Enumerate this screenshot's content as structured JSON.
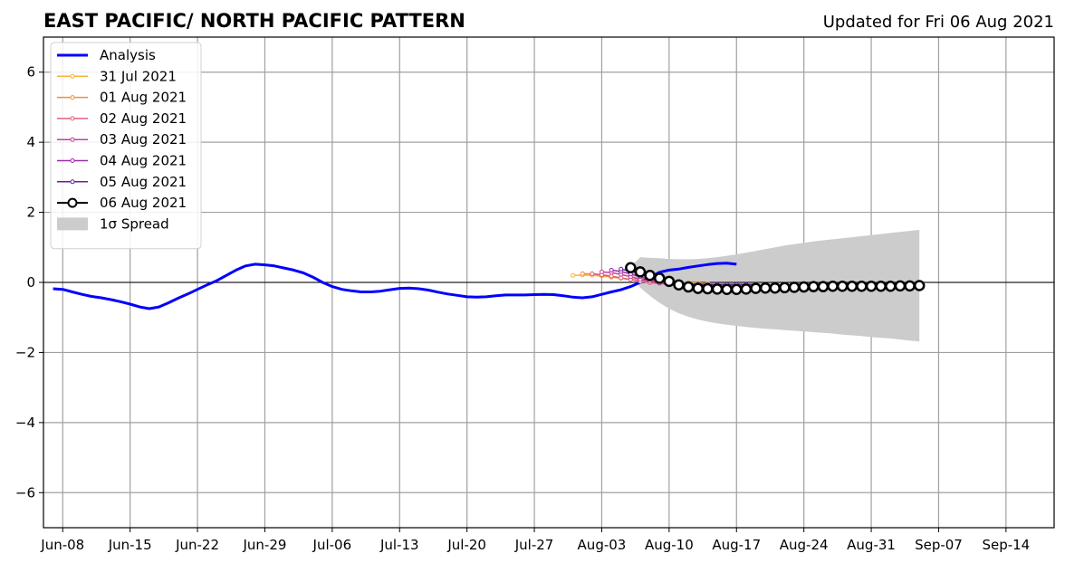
{
  "chart_data": {
    "type": "line",
    "title": "EAST PACIFIC/ NORTH PACIFIC PATTERN",
    "subtitle": "Updated for Fri 06 Aug 2021",
    "xlabel": "",
    "ylabel": "",
    "ylim": [
      -7,
      7
    ],
    "xlim": [
      "2021-06-06",
      "2021-09-19"
    ],
    "grid": true,
    "legend_position": "top-left",
    "x_ticks": [
      "Jun-08",
      "Jun-15",
      "Jun-22",
      "Jun-29",
      "Jul-06",
      "Jul-13",
      "Jul-20",
      "Jul-27",
      "Aug-03",
      "Aug-10",
      "Aug-17",
      "Aug-24",
      "Aug-31",
      "Sep-07",
      "Sep-14"
    ],
    "y_ticks": [
      "−6",
      "−4",
      "−2",
      "0",
      "2",
      "4",
      "6"
    ],
    "analysis": {
      "name": "Analysis",
      "color": "#0000ff",
      "start_date": "2021-06-07",
      "values": [
        -0.18,
        -0.2,
        -0.27,
        -0.34,
        -0.4,
        -0.44,
        -0.49,
        -0.55,
        -0.62,
        -0.7,
        -0.75,
        -0.7,
        -0.58,
        -0.45,
        -0.33,
        -0.2,
        -0.07,
        0.05,
        0.2,
        0.35,
        0.47,
        0.52,
        0.5,
        0.47,
        0.41,
        0.35,
        0.27,
        0.15,
        0.0,
        -0.12,
        -0.2,
        -0.24,
        -0.27,
        -0.27,
        -0.25,
        -0.21,
        -0.17,
        -0.16,
        -0.18,
        -0.22,
        -0.28,
        -0.33,
        -0.37,
        -0.41,
        -0.42,
        -0.41,
        -0.38,
        -0.36,
        -0.36,
        -0.36,
        -0.35,
        -0.34,
        -0.35,
        -0.38,
        -0.42,
        -0.44,
        -0.41,
        -0.34,
        -0.27,
        -0.21,
        -0.12,
        0.0,
        0.15,
        0.29,
        0.35,
        0.38,
        0.43,
        0.47,
        0.51,
        0.54,
        0.55,
        0.52
      ]
    },
    "forecasts": [
      {
        "name": "31 Jul 2021",
        "color": "#f5b43c",
        "start_date": "2021-07-31",
        "values": [
          0.2,
          0.21,
          0.2,
          0.18,
          0.15,
          0.12,
          0.09,
          0.07,
          0.05,
          0.03,
          0.02,
          0.0,
          -0.01,
          -0.02,
          -0.03
        ]
      },
      {
        "name": "01 Aug 2021",
        "color": "#f28e3c",
        "start_date": "2021-08-01",
        "values": [
          0.25,
          0.24,
          0.2,
          0.16,
          0.12,
          0.08,
          0.05,
          0.03,
          0.01,
          -0.01,
          -0.02,
          -0.04,
          -0.05,
          -0.06,
          -0.07
        ]
      },
      {
        "name": "02 Aug 2021",
        "color": "#e0607e",
        "start_date": "2021-08-02",
        "values": [
          0.25,
          0.22,
          0.18,
          0.13,
          0.08,
          0.03,
          -0.01,
          -0.03,
          -0.05,
          -0.06,
          -0.07,
          -0.07,
          -0.07,
          -0.07,
          -0.07
        ]
      },
      {
        "name": "03 Aug 2021",
        "color": "#c1409c",
        "start_date": "2021-08-03",
        "values": [
          0.3,
          0.28,
          0.23,
          0.16,
          0.09,
          0.03,
          -0.02,
          -0.05,
          -0.07,
          -0.08,
          -0.08,
          -0.08,
          -0.08,
          -0.08,
          -0.08
        ]
      },
      {
        "name": "04 Aug 2021",
        "color": "#9b2ba8",
        "start_date": "2021-08-04",
        "values": [
          0.35,
          0.31,
          0.24,
          0.16,
          0.08,
          0.02,
          -0.03,
          -0.05,
          -0.06,
          -0.07,
          -0.07,
          -0.07,
          -0.07,
          -0.07,
          -0.07
        ]
      },
      {
        "name": "05 Aug 2021",
        "color": "#6a1f9a",
        "start_date": "2021-08-05",
        "values": [
          0.38,
          0.32,
          0.24,
          0.15,
          0.07,
          0.02,
          -0.02,
          -0.04,
          -0.05,
          -0.06,
          -0.06,
          -0.06,
          -0.06,
          -0.06,
          -0.06
        ]
      },
      {
        "name": "06 Aug 2021",
        "color": "#000000",
        "start_date": "2021-08-06",
        "values": [
          0.42,
          0.3,
          0.2,
          0.12,
          0.03,
          -0.07,
          -0.13,
          -0.17,
          -0.18,
          -0.19,
          -0.2,
          -0.2,
          -0.19,
          -0.17,
          -0.16,
          -0.16,
          -0.15,
          -0.14,
          -0.13,
          -0.12,
          -0.12,
          -0.11,
          -0.11,
          -0.11,
          -0.11,
          -0.11,
          -0.11,
          -0.11,
          -0.1,
          -0.1,
          -0.09
        ]
      }
    ],
    "spread": {
      "name": "1σ Spread",
      "color": "#cccccc",
      "start_date": "2021-08-06",
      "upper": [
        0.45,
        0.72,
        0.7,
        0.69,
        0.67,
        0.66,
        0.66,
        0.67,
        0.69,
        0.72,
        0.76,
        0.8,
        0.85,
        0.9,
        0.95,
        1.0,
        1.05,
        1.09,
        1.13,
        1.17,
        1.2,
        1.23,
        1.26,
        1.29,
        1.32,
        1.35,
        1.38,
        1.41,
        1.44,
        1.47,
        1.5
      ],
      "lower": [
        0.3,
        -0.15,
        -0.38,
        -0.58,
        -0.75,
        -0.88,
        -0.98,
        -1.06,
        -1.12,
        -1.17,
        -1.21,
        -1.24,
        -1.27,
        -1.3,
        -1.32,
        -1.34,
        -1.36,
        -1.38,
        -1.4,
        -1.42,
        -1.44,
        -1.46,
        -1.49,
        -1.51,
        -1.53,
        -1.56,
        -1.58,
        -1.6,
        -1.63,
        -1.66,
        -1.69
      ]
    }
  }
}
